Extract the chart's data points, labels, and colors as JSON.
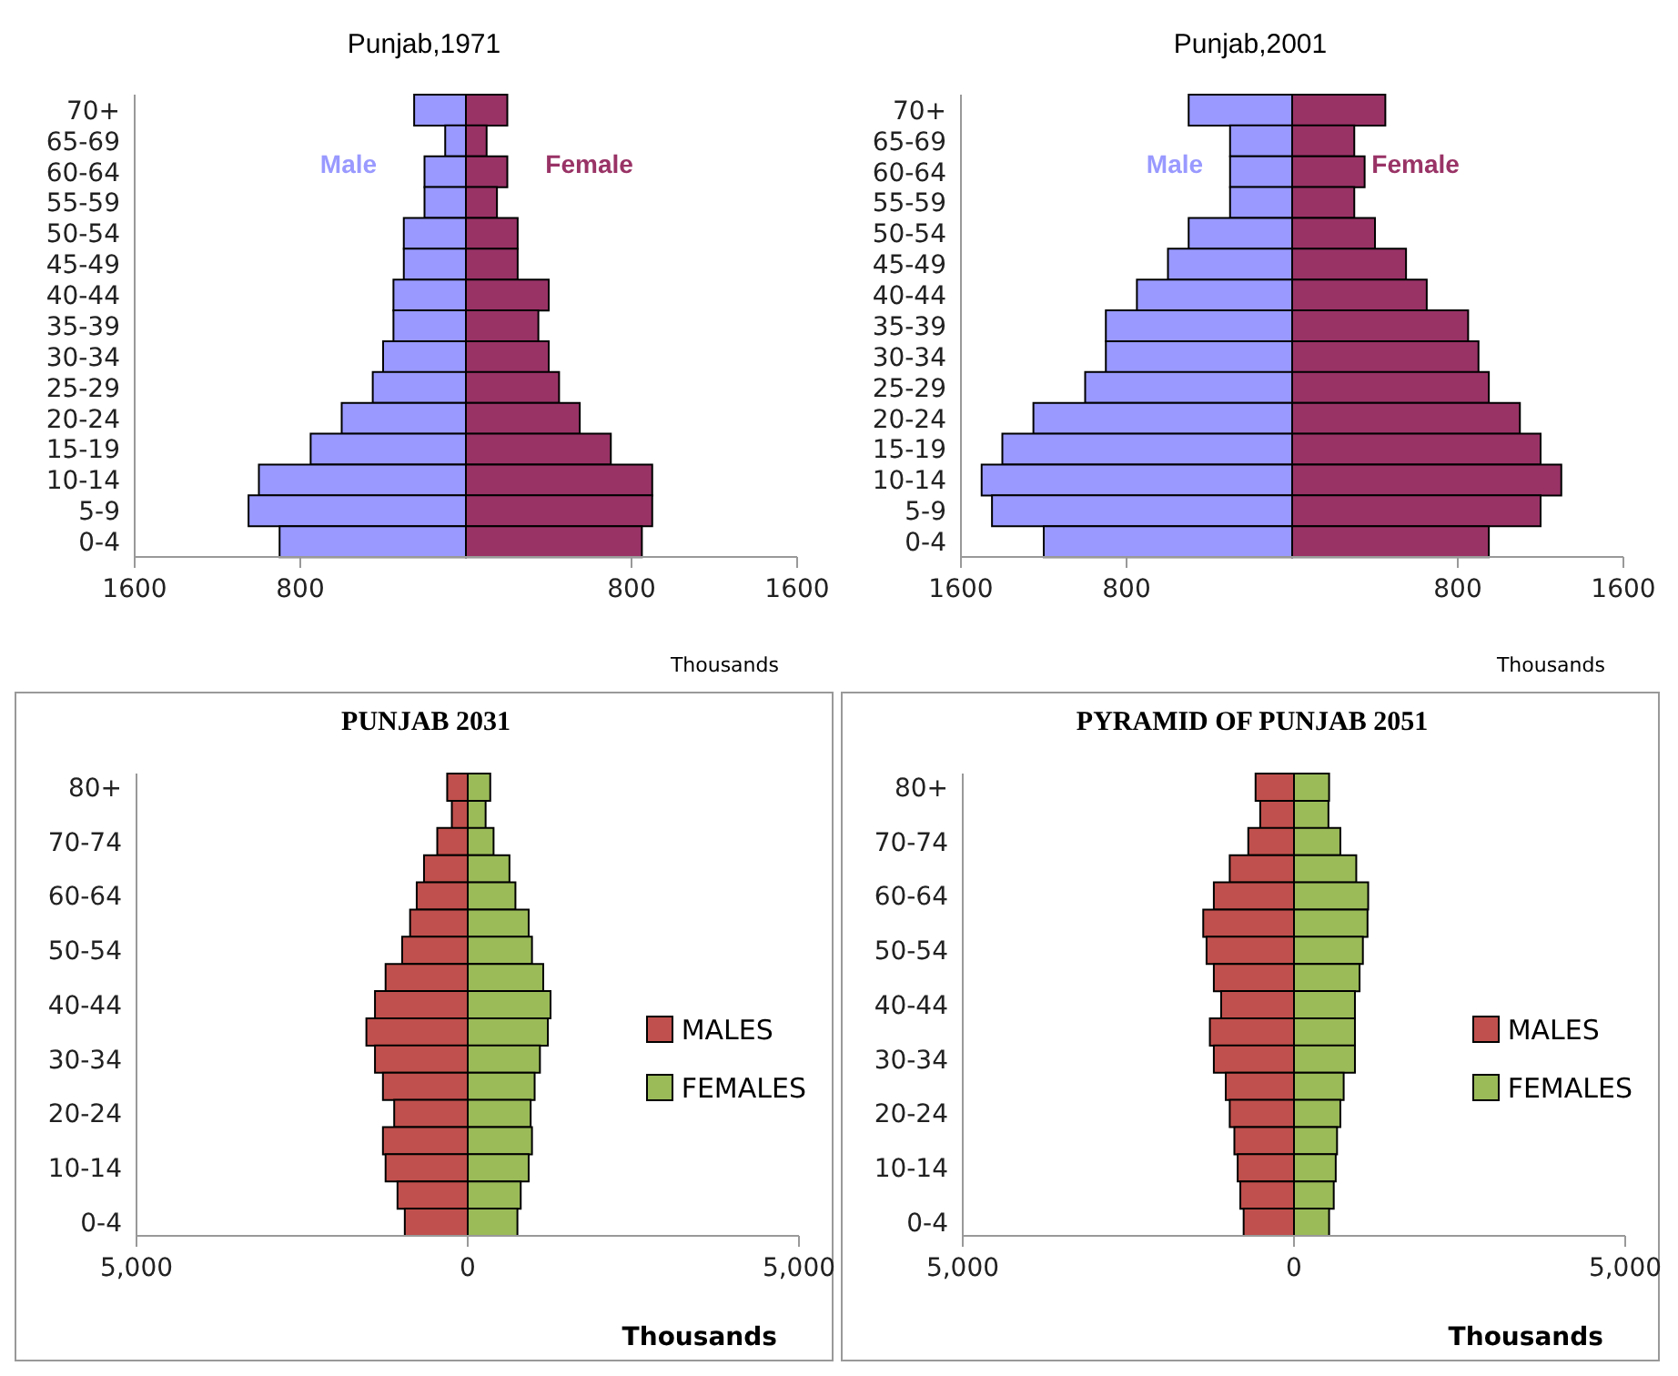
{
  "chart_data": [
    {
      "type": "bar",
      "title": "Punjab,1971",
      "xlabel": "Thousands",
      "orientation": "horizontal",
      "stacked": true,
      "legend": false,
      "grid": false,
      "categories": [
        "70+",
        "65-69",
        "60-64",
        "55-59",
        "50-54",
        "45-49",
        "40-44",
        "35-39",
        "30-34",
        "25-29",
        "20-24",
        "15-19",
        "10-14",
        "5-9",
        "0-4"
      ],
      "xlim": [
        -1600,
        1600
      ],
      "xticks": [
        {
          "value": -1600,
          "label": "1600"
        },
        {
          "value": -800,
          "label": "800"
        },
        {
          "value": 800,
          "label": "800"
        },
        {
          "value": 1600,
          "label": "1600"
        }
      ],
      "series": [
        {
          "name": "Male",
          "color": "#9999ff",
          "values": [
            -250,
            -100,
            -200,
            -200,
            -300,
            -300,
            -350,
            -350,
            -400,
            -450,
            -600,
            -750,
            -1000,
            -1050,
            -900
          ]
        },
        {
          "name": "Female",
          "color": "#993366",
          "values": [
            200,
            100,
            200,
            150,
            250,
            250,
            400,
            350,
            400,
            450,
            550,
            700,
            900,
            900,
            850
          ]
        }
      ]
    },
    {
      "type": "bar",
      "title": "Punjab,2001",
      "xlabel": "Thousands",
      "orientation": "horizontal",
      "stacked": true,
      "legend": false,
      "grid": false,
      "categories": [
        "70+",
        "65-69",
        "60-64",
        "55-59",
        "50-54",
        "45-49",
        "40-44",
        "35-39",
        "30-34",
        "25-29",
        "20-24",
        "15-19",
        "10-14",
        "5-9",
        "0-4"
      ],
      "xlim": [
        -1600,
        1600
      ],
      "xticks": [
        {
          "value": -1600,
          "label": "1600"
        },
        {
          "value": -800,
          "label": "800"
        },
        {
          "value": 800,
          "label": "800"
        },
        {
          "value": 1600,
          "label": "1600"
        }
      ],
      "series": [
        {
          "name": "Male",
          "color": "#9999ff",
          "values": [
            -500,
            -300,
            -300,
            -300,
            -500,
            -600,
            -750,
            -900,
            -900,
            -1000,
            -1250,
            -1400,
            -1500,
            -1450,
            -1200
          ]
        },
        {
          "name": "Female",
          "color": "#993366",
          "values": [
            450,
            300,
            350,
            300,
            400,
            550,
            650,
            850,
            900,
            950,
            1100,
            1200,
            1300,
            1200,
            950
          ]
        }
      ]
    },
    {
      "type": "bar",
      "title": "PUNJAB   2031",
      "xlabel": "Thousands",
      "orientation": "horizontal",
      "stacked": true,
      "legend": "right",
      "grid": false,
      "categories": [
        "80+",
        null,
        "70-74",
        null,
        "60-64",
        null,
        "50-54",
        null,
        "40-44",
        null,
        "30-34",
        null,
        "20-24",
        null,
        "10-14",
        null,
        "0-4"
      ],
      "xlim": [
        -5000,
        5000
      ],
      "xticks": [
        {
          "value": -5000,
          "label": "5,000"
        },
        0,
        {
          "value": 5000,
          "label": "5,000"
        }
      ],
      "series": [
        {
          "name": "MALES",
          "color": "#c0504d",
          "values": [
            -310,
            -240,
            -460,
            -660,
            -770,
            -870,
            -990,
            -1240,
            -1400,
            -1530,
            -1400,
            -1280,
            -1110,
            -1280,
            -1240,
            -1060,
            -950
          ]
        },
        {
          "name": "FEMALES",
          "color": "#9bbb59",
          "values": [
            340,
            270,
            390,
            630,
            720,
            920,
            970,
            1140,
            1250,
            1210,
            1090,
            1010,
            950,
            970,
            920,
            800,
            750
          ]
        }
      ]
    },
    {
      "type": "bar",
      "title": "PYRAMID OF PUNJAB 2051",
      "xlabel": "Thousands",
      "orientation": "horizontal",
      "stacked": true,
      "legend": "right",
      "grid": false,
      "categories": [
        "80+",
        null,
        "70-74",
        null,
        "60-64",
        null,
        "50-54",
        null,
        "40-44",
        null,
        "30-34",
        null,
        "20-24",
        null,
        "10-14",
        null,
        "0-4"
      ],
      "xlim": [
        -5000,
        5000
      ],
      "xticks": [
        {
          "value": -5000,
          "label": "5,000"
        },
        0,
        {
          "value": 5000,
          "label": "5,000"
        }
      ],
      "series": [
        {
          "name": "MALES",
          "color": "#c0504d",
          "values": [
            -580,
            -510,
            -690,
            -970,
            -1210,
            -1370,
            -1320,
            -1210,
            -1100,
            -1270,
            -1210,
            -1030,
            -970,
            -900,
            -850,
            -810,
            -760
          ]
        },
        {
          "name": "FEMALES",
          "color": "#9bbb59",
          "values": [
            530,
            520,
            700,
            940,
            1120,
            1110,
            1040,
            990,
            920,
            920,
            920,
            750,
            700,
            650,
            630,
            600,
            530
          ]
        }
      ]
    }
  ]
}
